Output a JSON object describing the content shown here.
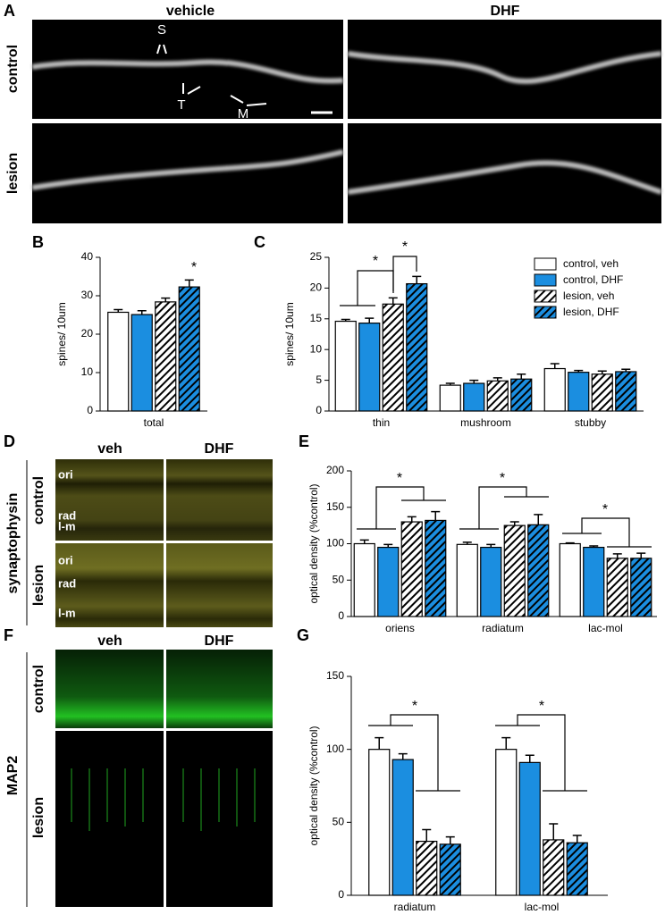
{
  "figure": {
    "panel_labels": [
      "A",
      "B",
      "C",
      "D",
      "E",
      "F",
      "G"
    ],
    "panel_a": {
      "columns": [
        "vehicle",
        "DHF"
      ],
      "rows": [
        "control",
        "lesion"
      ],
      "markers": [
        "S",
        "T",
        "M"
      ]
    },
    "panel_d": {
      "stain": "synaptophysin",
      "columns": [
        "veh",
        "DHF"
      ],
      "rows": [
        "control",
        "lesion"
      ],
      "layers": [
        "ori",
        "rad",
        "l-m",
        "ori",
        "rad",
        "l-m"
      ]
    },
    "panel_f": {
      "stain": "MAP2",
      "columns": [
        "veh",
        "DHF"
      ],
      "rows": [
        "control",
        "lesion"
      ]
    }
  },
  "chart_data": [
    {
      "type": "bar",
      "ylabel": "spines/ 10um",
      "categories": [
        "total"
      ],
      "ylim": [
        0,
        40
      ],
      "yticks": [
        0,
        10,
        20,
        30,
        40
      ],
      "annotations": [
        "*"
      ],
      "series": [
        {
          "color": "#ffffff",
          "hatch": false,
          "values": [
            25.7
          ],
          "errors": [
            0.7
          ]
        },
        {
          "color": "#1b8ee0",
          "hatch": false,
          "values": [
            25.1
          ],
          "errors": [
            1.0
          ]
        },
        {
          "color": "#ffffff",
          "hatch": true,
          "values": [
            28.4
          ],
          "errors": [
            1.0
          ]
        },
        {
          "color": "#1b8ee0",
          "hatch": true,
          "values": [
            32.3
          ],
          "errors": [
            1.8
          ]
        }
      ]
    },
    {
      "type": "bar",
      "ylabel": "spines/ 10um",
      "categories": [
        "thin",
        "mushroom",
        "stubby"
      ],
      "ylim": [
        0,
        25
      ],
      "yticks": [
        0,
        5,
        10,
        15,
        20,
        25
      ],
      "annotations": [
        "*",
        "*"
      ],
      "legend": "upper right",
      "series": [
        {
          "name": "control, veh",
          "color": "#ffffff",
          "hatch": false,
          "values": [
            14.6,
            4.2,
            6.9
          ],
          "errors": [
            0.3,
            0.3,
            0.8
          ]
        },
        {
          "name": "control, DHF",
          "color": "#1b8ee0",
          "hatch": false,
          "values": [
            14.3,
            4.5,
            6.3
          ],
          "errors": [
            0.8,
            0.5,
            0.3
          ]
        },
        {
          "name": "lesion, veh",
          "color": "#ffffff",
          "hatch": true,
          "values": [
            17.4,
            4.9,
            6.0
          ],
          "errors": [
            1.0,
            0.5,
            0.5
          ]
        },
        {
          "name": "lesion, DHF",
          "color": "#1b8ee0",
          "hatch": true,
          "values": [
            20.7,
            5.2,
            6.4
          ],
          "errors": [
            1.2,
            0.8,
            0.4
          ]
        }
      ]
    },
    {
      "type": "bar",
      "ylabel": "optical density (%control)",
      "categories": [
        "oriens",
        "radiatum",
        "lac-mol"
      ],
      "ylim": [
        0,
        200
      ],
      "yticks": [
        0,
        50,
        100,
        150,
        200
      ],
      "annotations": [
        "*",
        "*",
        "*"
      ],
      "series": [
        {
          "color": "#ffffff",
          "hatch": false,
          "values": [
            100,
            99,
            100
          ],
          "errors": [
            5,
            3,
            1
          ]
        },
        {
          "color": "#1b8ee0",
          "hatch": false,
          "values": [
            95,
            95,
            95
          ],
          "errors": [
            4,
            4,
            2
          ]
        },
        {
          "color": "#ffffff",
          "hatch": true,
          "values": [
            130,
            125,
            80
          ],
          "errors": [
            7,
            5,
            6
          ]
        },
        {
          "color": "#1b8ee0",
          "hatch": true,
          "values": [
            132,
            126,
            80
          ],
          "errors": [
            12,
            14,
            7
          ]
        }
      ]
    },
    {
      "type": "bar",
      "ylabel": "optical density (%control)",
      "categories": [
        "radiatum",
        "lac-mol"
      ],
      "ylim": [
        0,
        150
      ],
      "yticks": [
        0,
        50,
        100,
        150
      ],
      "annotations": [
        "*",
        "*"
      ],
      "series": [
        {
          "color": "#ffffff",
          "hatch": false,
          "values": [
            100,
            100
          ],
          "errors": [
            8,
            8
          ]
        },
        {
          "color": "#1b8ee0",
          "hatch": false,
          "values": [
            93,
            91
          ],
          "errors": [
            4,
            5
          ]
        },
        {
          "color": "#ffffff",
          "hatch": true,
          "values": [
            37,
            38
          ],
          "errors": [
            8,
            11
          ]
        },
        {
          "color": "#1b8ee0",
          "hatch": true,
          "values": [
            35,
            36
          ],
          "errors": [
            5,
            5
          ]
        }
      ]
    }
  ]
}
